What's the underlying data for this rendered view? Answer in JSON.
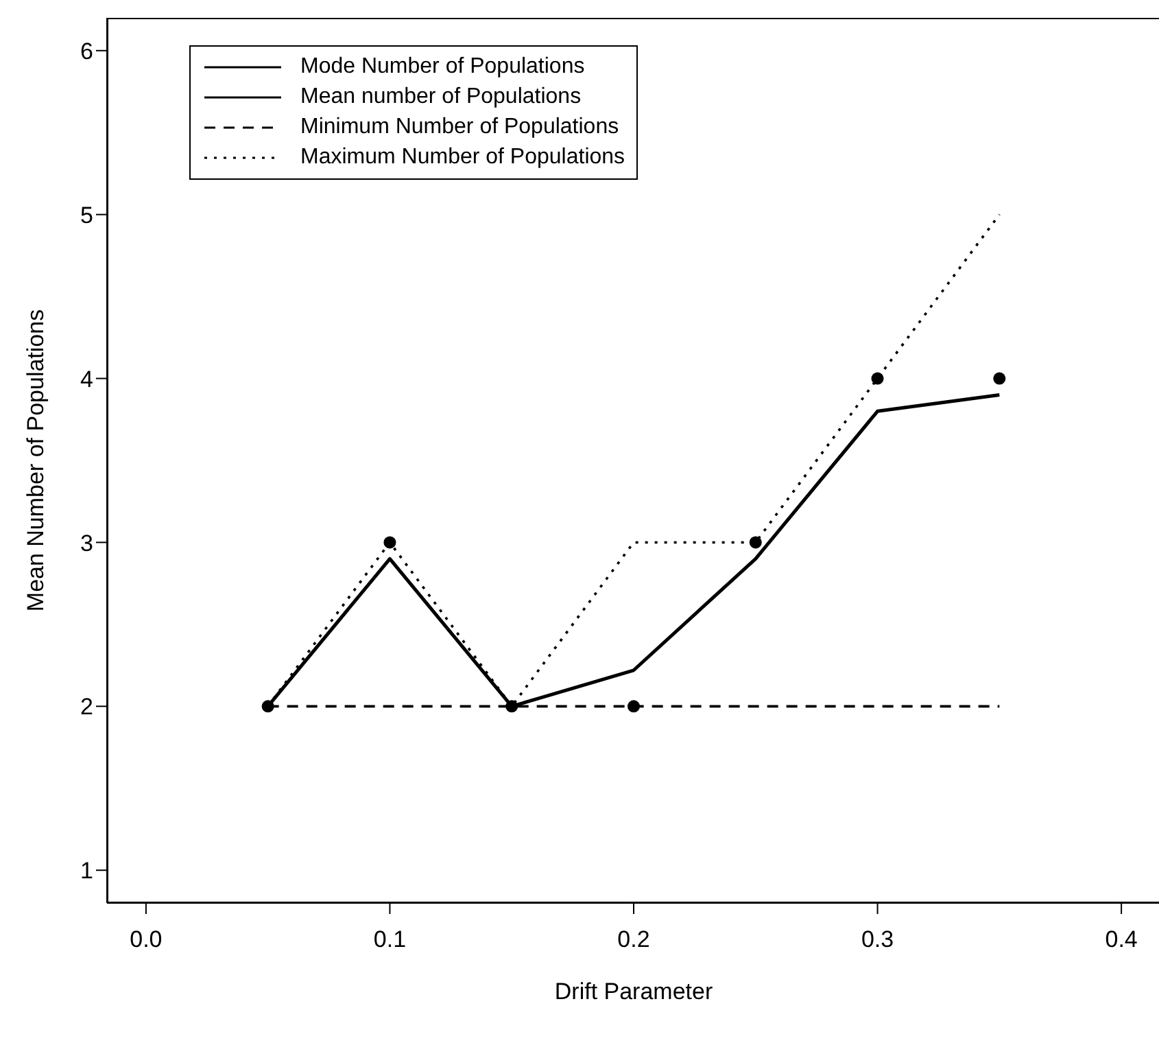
{
  "chart_data": {
    "type": "line",
    "xlabel": "Drift Parameter",
    "ylabel": "Mean Number of Populations",
    "x": [
      0.05,
      0.1,
      0.15,
      0.2,
      0.25,
      0.3,
      0.35
    ],
    "series": [
      {
        "name": "Mode Number of Populations",
        "type": "scatter",
        "marker": "circle",
        "color": "#000000",
        "values": [
          2,
          3,
          2,
          2,
          3,
          4,
          4
        ]
      },
      {
        "name": "Mean number of Populations",
        "color": "#000000",
        "line_style": "solid",
        "values": [
          2,
          2.9,
          2,
          2.22,
          2.9,
          3.8,
          3.9
        ]
      },
      {
        "name": "Minimum Number of Populations",
        "color": "#000000",
        "line_style": "dashed",
        "values": [
          2,
          2,
          2,
          2,
          2,
          2,
          2
        ]
      },
      {
        "name": "Maximum Number of Populations",
        "color": "#000000",
        "line_style": "dotted",
        "values": [
          2,
          3,
          2,
          3,
          3,
          4,
          5
        ]
      }
    ],
    "xlim": [
      -0.016,
      0.416
    ],
    "xticks": [
      {
        "value": 0,
        "label": "0.0"
      },
      0.1,
      0.2,
      0.3,
      0.4
    ],
    "ylim": [
      0.8,
      6.2
    ],
    "yticks": [
      1,
      2,
      3,
      4,
      5,
      6
    ],
    "legend": "top left",
    "grid": false
  }
}
